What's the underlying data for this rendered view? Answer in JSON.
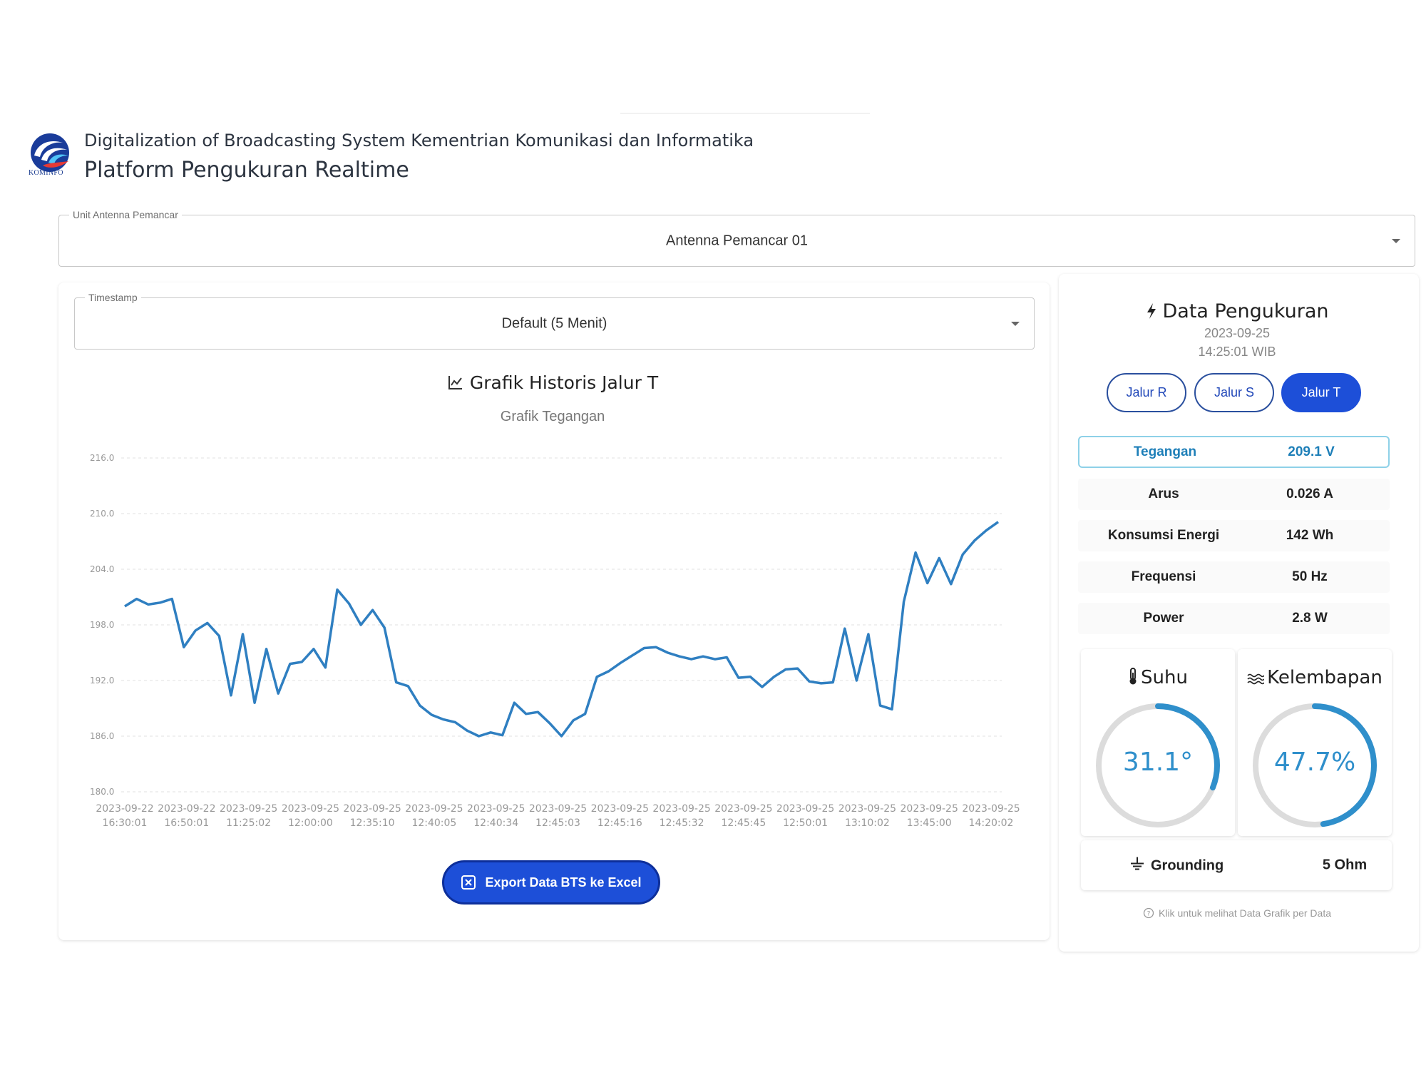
{
  "header": {
    "org": "Digitalization of Broadcasting System Kementrian Komunikasi dan Informatika",
    "title": "Platform Pengukuran Realtime",
    "logo_text": "KOMINFO"
  },
  "unit_select": {
    "label": "Unit Antenna Pemancar",
    "value": "Antenna Pemancar 01"
  },
  "timestamp_select": {
    "label": "Timestamp",
    "value": "Default (5 Menit)"
  },
  "chart_section": {
    "title": "Grafik Historis Jalur T",
    "subtitle": "Grafik Tegangan"
  },
  "chart_data": {
    "type": "line",
    "title": "Grafik Historis Jalur T",
    "subtitle": "Grafik Tegangan",
    "xlabel": "",
    "ylabel": "",
    "ylim": [
      180,
      216
    ],
    "yticks": [
      "216.0",
      "210.0",
      "204.0",
      "198.0",
      "192.0",
      "186.0",
      "180.0"
    ],
    "grid": true,
    "color": "#2f7fc1",
    "x_labels": [
      [
        "2023-09-22",
        "16:30:01"
      ],
      [
        "2023-09-22",
        "16:50:01"
      ],
      [
        "2023-09-25",
        "11:25:02"
      ],
      [
        "2023-09-25",
        "12:00:00"
      ],
      [
        "2023-09-25",
        "12:35:10"
      ],
      [
        "2023-09-25",
        "12:40:05"
      ],
      [
        "2023-09-25",
        "12:40:34"
      ],
      [
        "2023-09-25",
        "12:45:03"
      ],
      [
        "2023-09-25",
        "12:45:16"
      ],
      [
        "2023-09-25",
        "12:45:32"
      ],
      [
        "2023-09-25",
        "12:45:45"
      ],
      [
        "2023-09-25",
        "12:50:01"
      ],
      [
        "2023-09-25",
        "13:10:02"
      ],
      [
        "2023-09-25",
        "13:45:00"
      ],
      [
        "2023-09-25",
        "14:20:02"
      ]
    ],
    "values": [
      200.0,
      200.8,
      200.2,
      200.4,
      200.8,
      195.6,
      197.4,
      198.2,
      196.8,
      190.4,
      197.0,
      189.6,
      195.4,
      190.6,
      193.8,
      194.0,
      195.4,
      193.4,
      201.8,
      200.3,
      198.0,
      199.6,
      197.7,
      191.8,
      191.4,
      189.3,
      188.3,
      187.8,
      187.5,
      186.6,
      186.0,
      186.4,
      186.1,
      189.6,
      188.4,
      188.6,
      187.4,
      186.0,
      187.7,
      188.4,
      192.4,
      193.0,
      193.9,
      194.7,
      195.5,
      195.6,
      195.0,
      194.6,
      194.3,
      194.6,
      194.3,
      194.5,
      192.3,
      192.4,
      191.3,
      192.4,
      193.2,
      193.3,
      191.9,
      191.7,
      191.8,
      197.6,
      192.0,
      197.0,
      189.3,
      188.9,
      200.5,
      205.8,
      202.5,
      205.2,
      202.4,
      205.6,
      207.1,
      208.2,
      209.1
    ],
    "points_per_label": 5
  },
  "export_button": {
    "label": "Export Data BTS ke Excel"
  },
  "measurement": {
    "title": "Data Pengukuran",
    "date": "2023-09-25",
    "time": "14:25:01 WIB",
    "tabs": [
      {
        "label": "Jalur R",
        "active": false
      },
      {
        "label": "Jalur S",
        "active": false
      },
      {
        "label": "Jalur T",
        "active": true
      }
    ],
    "rows": [
      {
        "label": "Tegangan",
        "value": "209.1 V"
      },
      {
        "label": "Arus",
        "value": "0.026 A"
      },
      {
        "label": "Konsumsi Energi",
        "value": "142 Wh"
      },
      {
        "label": "Frequensi",
        "value": "50 Hz"
      },
      {
        "label": "Power",
        "value": "2.8 W"
      }
    ],
    "suhu": {
      "label": "Suhu",
      "value": "31.1°",
      "fraction": 0.311
    },
    "kelembapan": {
      "label": "Kelembapan",
      "value": "47.7%",
      "fraction": 0.477
    },
    "grounding": {
      "label": "Grounding",
      "value": "5 Ohm"
    },
    "hint": "Klik untuk melihat Data Grafik per Data",
    "colors": {
      "accent": "#1d4fd8",
      "gauge": "#2f8fcb",
      "track": "#dcdcdc"
    }
  }
}
